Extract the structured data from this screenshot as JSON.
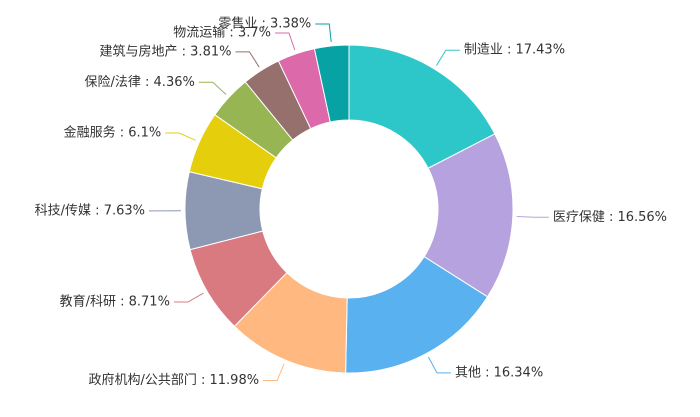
{
  "chart_data": {
    "type": "pie",
    "variant": "donut",
    "title": "",
    "label_separator": " : ",
    "value_suffix": "%",
    "slices": [
      {
        "name": "制造业",
        "value": 17.43,
        "color": "#2ec7c9"
      },
      {
        "name": "医疗保健",
        "value": 16.56,
        "color": "#b6a2de"
      },
      {
        "name": "其他",
        "value": 16.34,
        "color": "#5ab1ef"
      },
      {
        "name": "政府机构/公共部门",
        "value": 11.98,
        "color": "#ffb980"
      },
      {
        "name": "教育/科研",
        "value": 8.71,
        "color": "#d87a80"
      },
      {
        "name": "科技/传媒",
        "value": 7.63,
        "color": "#8d98b3"
      },
      {
        "name": "金融服务",
        "value": 6.1,
        "color": "#e5cf0d"
      },
      {
        "name": "保险/法律",
        "value": 4.36,
        "color": "#97b552"
      },
      {
        "name": "建筑与房地产",
        "value": 3.81,
        "color": "#95706d"
      },
      {
        "name": "物流运输",
        "value": 3.7,
        "color": "#dc69aa"
      },
      {
        "name": "零售业",
        "value": 3.38,
        "color": "#07a2a4"
      }
    ]
  }
}
